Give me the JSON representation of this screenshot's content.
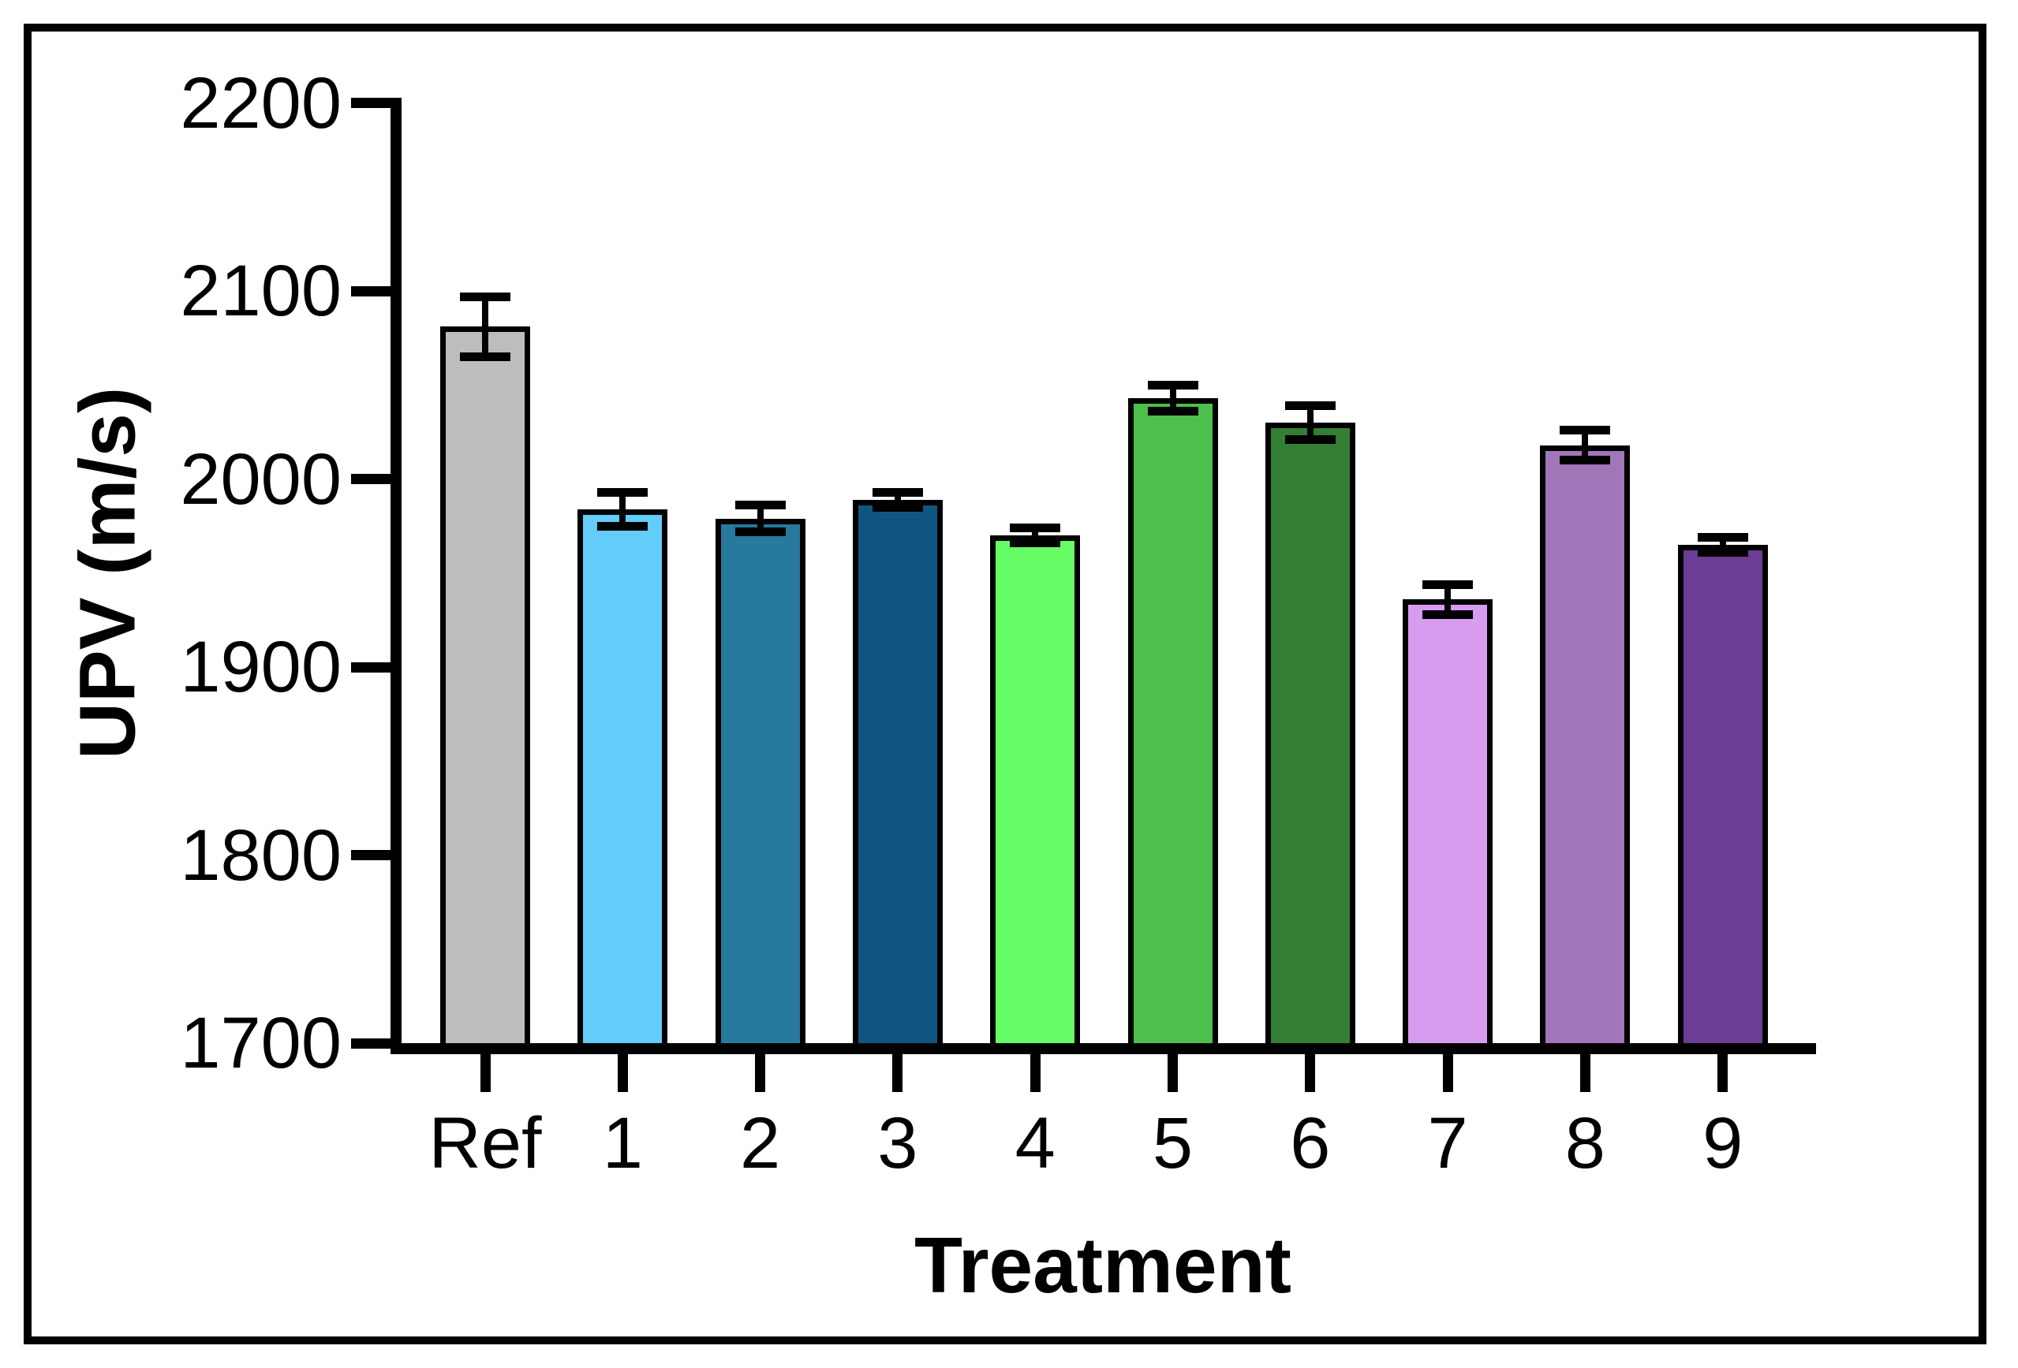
{
  "figure": {
    "background": "#FFFFFF",
    "border_color": "#000000",
    "axis_color": "#000000",
    "bar_outline_color": "#000000",
    "error_bar_color": "#000000"
  },
  "chart_data": {
    "type": "bar",
    "title": "",
    "xlabel": "Treatment",
    "ylabel": "UPV (m/s)",
    "categories": [
      "Ref",
      "1",
      "2",
      "3",
      "4",
      "5",
      "6",
      "7",
      "8",
      "9"
    ],
    "values": [
      2081,
      1984,
      1979,
      1989,
      1970,
      2043,
      2030,
      1936,
      2018,
      1965
    ],
    "errors": [
      16,
      9,
      7,
      4,
      4,
      7,
      9,
      8,
      8,
      4
    ],
    "bar_colors": [
      "#BDBDBD",
      "#63CCF8",
      "#28799E",
      "#0E5681",
      "#66FC66",
      "#4CBF4C",
      "#347F34",
      "#D79CF0",
      "#A177BA",
      "#6B3D94"
    ],
    "ylim": [
      1700,
      2200
    ],
    "yticks": [
      1700,
      1800,
      1900,
      2000,
      2100,
      2200
    ],
    "grid": false,
    "legend": "none",
    "error_bar_style": "symmetric with caps"
  }
}
